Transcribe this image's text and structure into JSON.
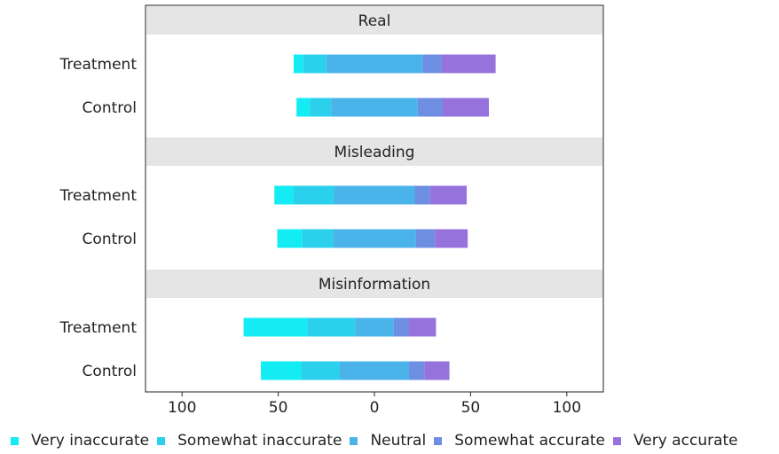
{
  "chart_data": {
    "type": "bar",
    "orientation": "horizontal",
    "stacked": "diverging",
    "facets": [
      {
        "title": "Real",
        "rows": [
          {
            "label": "Treatment",
            "values": [
              5,
              12,
              50,
              10,
              28
            ]
          },
          {
            "label": "Control",
            "values": [
              7,
              11,
              45,
              13,
              24
            ]
          }
        ]
      },
      {
        "title": "Misleading",
        "rows": [
          {
            "label": "Treatment",
            "values": [
              10,
              21,
              42,
              8,
              19
            ]
          },
          {
            "label": "Control",
            "values": [
              13,
              16,
              43,
              10,
              17
            ]
          }
        ]
      },
      {
        "title": "Misinformation",
        "rows": [
          {
            "label": "Treatment",
            "values": [
              33,
              25,
              20,
              8,
              14
            ]
          },
          {
            "label": "Control",
            "values": [
              21,
              20,
              36,
              8,
              13
            ]
          }
        ]
      }
    ],
    "series": [
      {
        "name": "Very inaccurate",
        "color": "#12ecf2"
      },
      {
        "name": "Somewhat inaccurate",
        "color": "#2ad0ec"
      },
      {
        "name": "Neutral",
        "color": "#4ab4ea"
      },
      {
        "name": "Somewhat accurate",
        "color": "#6d8ee2"
      },
      {
        "name": "Very accurate",
        "color": "#9672dd"
      }
    ],
    "x_ticks": [
      {
        "value": -100,
        "label": "100"
      },
      {
        "value": -50,
        "label": "50"
      },
      {
        "value": 0,
        "label": "0"
      },
      {
        "value": 50,
        "label": "50"
      },
      {
        "value": 100,
        "label": "100"
      }
    ],
    "xlim": [
      -119,
      119
    ],
    "legend_position": "bottom",
    "grid": false
  }
}
